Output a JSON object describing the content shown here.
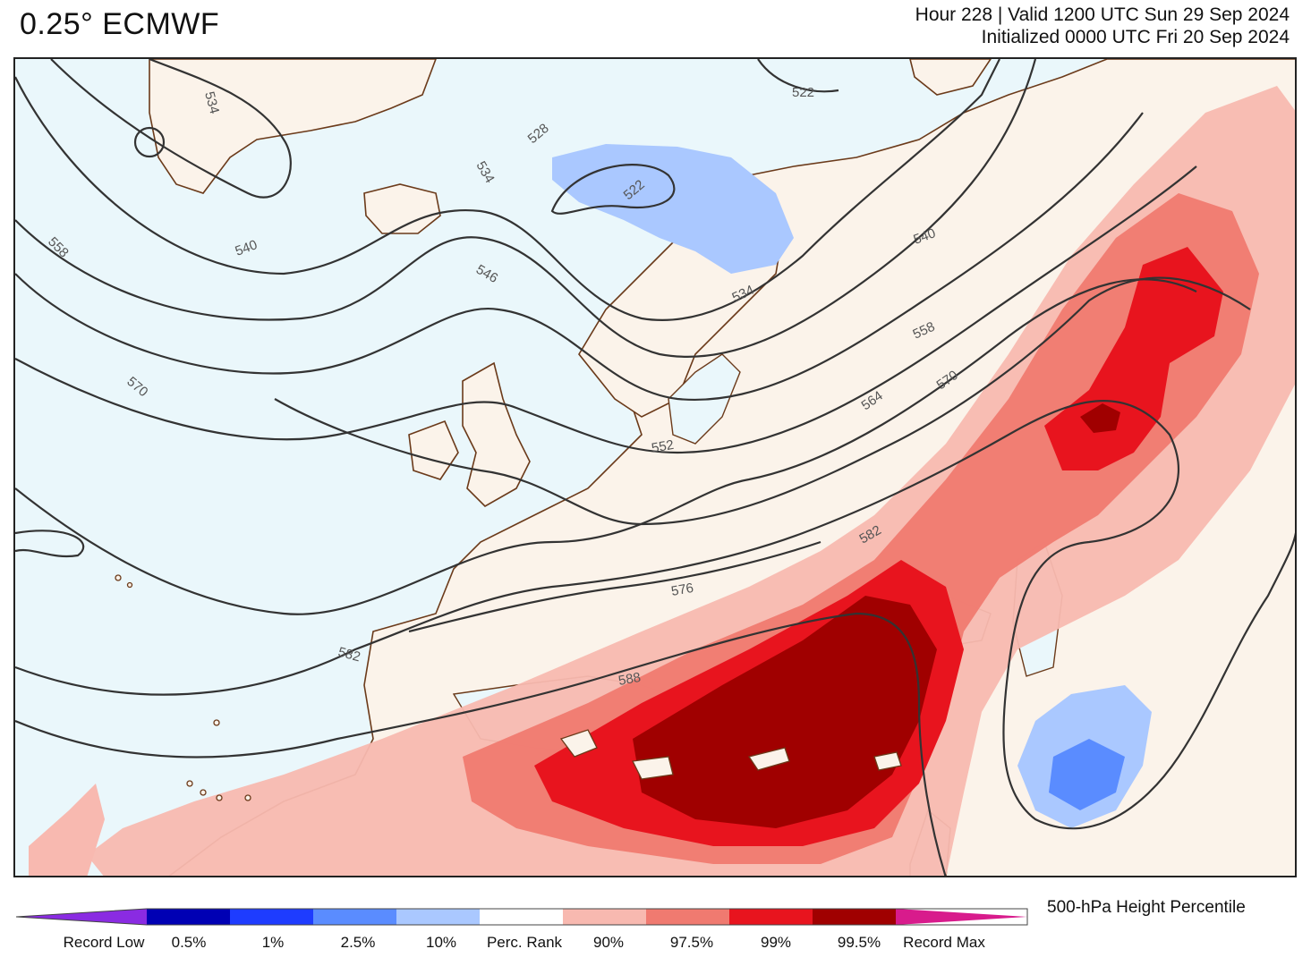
{
  "header": {
    "model": "0.25° ECMWF",
    "valid_line": "Hour 228 | Valid 1200 UTC Sun 29 Sep 2024",
    "init_line": "Initialized 0000 UTC Fri 20 Sep 2024"
  },
  "colorbar": {
    "title": "500-hPa Height Percentile",
    "labels": [
      "Record Low",
      "0.5%",
      "1%",
      "2.5%",
      "10%",
      "Perc. Rank",
      "90%",
      "97.5%",
      "99%",
      "99.5%",
      "Record Max"
    ],
    "colors": [
      "#8a2be2",
      "#0000b4",
      "#1e3cff",
      "#5a8cff",
      "#aac8ff",
      "#ffffff",
      "#f8b9b0",
      "#f07a70",
      "#e8141e",
      "#a00000",
      "#d81b8c"
    ]
  },
  "contours": {
    "labels": [
      "534",
      "522",
      "528",
      "522",
      "534",
      "540",
      "558",
      "546",
      "540",
      "534",
      "558",
      "570",
      "564",
      "570",
      "552",
      "582",
      "576",
      "582",
      "588",
      "570"
    ]
  },
  "map_colors": {
    "ocean": "#eaf7fb",
    "land": "#fbf3ea",
    "coast": "#6b3a1a",
    "contour": "#333333"
  }
}
